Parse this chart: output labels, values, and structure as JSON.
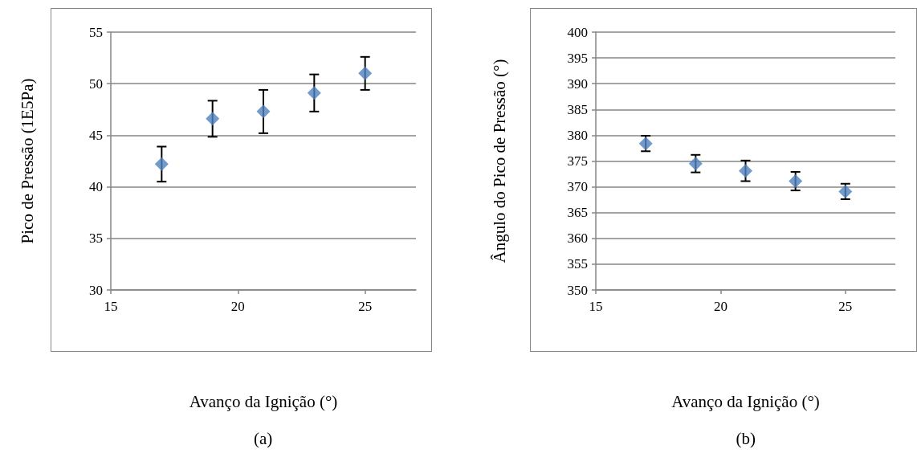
{
  "chart_data": [
    {
      "type": "scatter",
      "xlabel": "Avanço da Ignição (°)",
      "ylabel": "Pico de Pressão (1E5Pa)",
      "annotations": [
        "(a)"
      ],
      "x": [
        17,
        19,
        21,
        23,
        25
      ],
      "series": [
        {
          "color": "#4f81bd",
          "values": [
            42.2,
            46.6,
            47.3,
            49.1,
            51.0
          ],
          "errors": [
            1.7,
            1.75,
            2.1,
            1.8,
            1.6
          ]
        }
      ],
      "xlim": [
        15,
        27
      ],
      "xticks": [
        15,
        20,
        25
      ],
      "ylim": [
        30,
        55
      ],
      "yticks": [
        30,
        35,
        40,
        45,
        50,
        55
      ],
      "grid": "y",
      "marker": "diamond"
    },
    {
      "type": "scatter",
      "xlabel": "Avanço da Ignição (°)",
      "ylabel": "Ângulo do Pico de Pressão (°)",
      "annotations": [
        "(b)"
      ],
      "x": [
        17,
        19,
        21,
        23,
        25
      ],
      "series": [
        {
          "color": "#4f81bd",
          "values": [
            378.4,
            374.5,
            373.1,
            371.1,
            369.1
          ],
          "errors": [
            1.5,
            1.7,
            2.0,
            1.8,
            1.5
          ]
        }
      ],
      "xlim": [
        15,
        27
      ],
      "xticks": [
        15,
        20,
        25
      ],
      "ylim": [
        350,
        400
      ],
      "yticks": [
        350,
        355,
        360,
        365,
        370,
        375,
        380,
        385,
        390,
        395,
        400
      ],
      "grid": "y",
      "marker": "diamond"
    }
  ]
}
